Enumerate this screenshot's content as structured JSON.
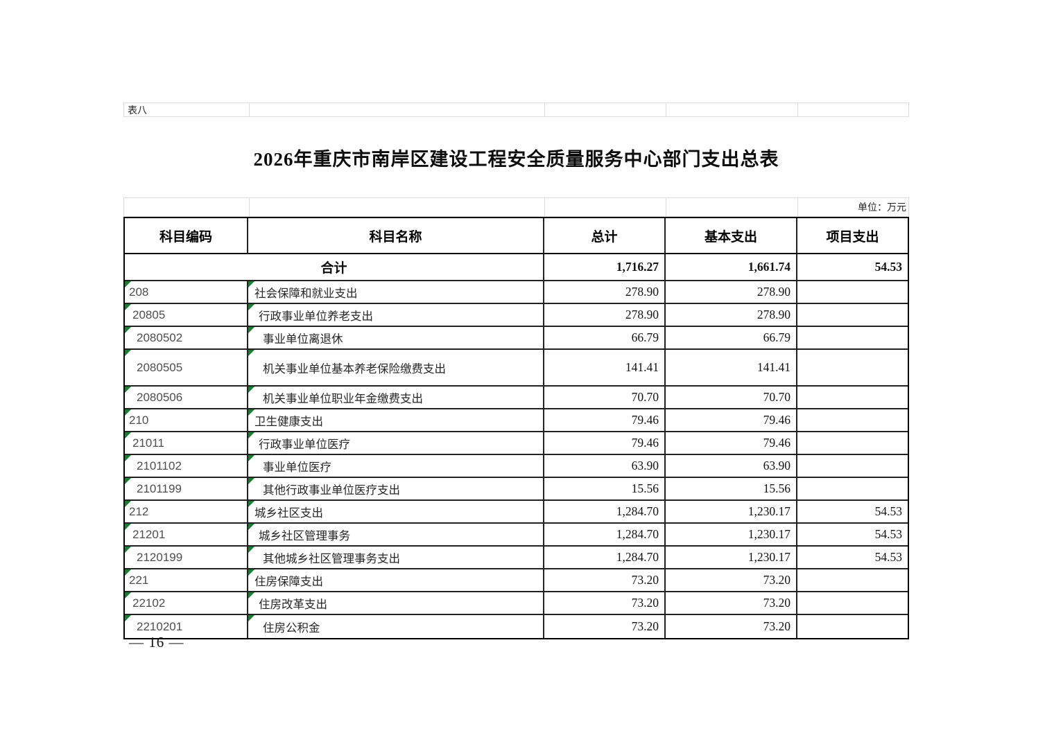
{
  "page": {
    "sheet_label": "表八",
    "title": "2026年重庆市南岸区建设工程安全质量服务中心部门支出总表",
    "unit_label": "单位：万元",
    "page_number": "— 16 —"
  },
  "colors": {
    "marker_green": "#1e7a35",
    "table_border": "#000000",
    "faint_grid": "#dcdcdc"
  },
  "icons": {
    "green_corner_marker": "excel-text-format-triangle"
  },
  "table": {
    "columns": [
      "科目编码",
      "科目名称",
      "总计",
      "基本支出",
      "项目支出"
    ],
    "total_row": {
      "label": "合计",
      "total": "1,716.27",
      "basic": "1,661.74",
      "project": "54.53"
    },
    "rows": [
      {
        "code": "208",
        "name": "社会保障和就业支出",
        "total": "278.90",
        "basic": "278.90",
        "project": "",
        "level": 1,
        "tall": false
      },
      {
        "code": "20805",
        "name": "行政事业单位养老支出",
        "total": "278.90",
        "basic": "278.90",
        "project": "",
        "level": 2,
        "tall": false
      },
      {
        "code": "2080502",
        "name": "事业单位离退休",
        "total": "66.79",
        "basic": "66.79",
        "project": "",
        "level": 3,
        "tall": false
      },
      {
        "code": "2080505",
        "name": "机关事业单位基本养老保险缴费支出",
        "total": "141.41",
        "basic": "141.41",
        "project": "",
        "level": 3,
        "tall": true
      },
      {
        "code": "2080506",
        "name": "机关事业单位职业年金缴费支出",
        "total": "70.70",
        "basic": "70.70",
        "project": "",
        "level": 3,
        "tall": false
      },
      {
        "code": "210",
        "name": "卫生健康支出",
        "total": "79.46",
        "basic": "79.46",
        "project": "",
        "level": 1,
        "tall": false
      },
      {
        "code": "21011",
        "name": "行政事业单位医疗",
        "total": "79.46",
        "basic": "79.46",
        "project": "",
        "level": 2,
        "tall": false
      },
      {
        "code": "2101102",
        "name": "事业单位医疗",
        "total": "63.90",
        "basic": "63.90",
        "project": "",
        "level": 3,
        "tall": false
      },
      {
        "code": "2101199",
        "name": "其他行政事业单位医疗支出",
        "total": "15.56",
        "basic": "15.56",
        "project": "",
        "level": 3,
        "tall": false
      },
      {
        "code": "212",
        "name": "城乡社区支出",
        "total": "1,284.70",
        "basic": "1,230.17",
        "project": "54.53",
        "level": 1,
        "tall": false
      },
      {
        "code": "21201",
        "name": "城乡社区管理事务",
        "total": "1,284.70",
        "basic": "1,230.17",
        "project": "54.53",
        "level": 2,
        "tall": false
      },
      {
        "code": "2120199",
        "name": "其他城乡社区管理事务支出",
        "total": "1,284.70",
        "basic": "1,230.17",
        "project": "54.53",
        "level": 3,
        "tall": false
      },
      {
        "code": "221",
        "name": "住房保障支出",
        "total": "73.20",
        "basic": "73.20",
        "project": "",
        "level": 1,
        "tall": false
      },
      {
        "code": "22102",
        "name": "住房改革支出",
        "total": "73.20",
        "basic": "73.20",
        "project": "",
        "level": 2,
        "tall": false
      },
      {
        "code": "2210201",
        "name": "住房公积金",
        "total": "73.20",
        "basic": "73.20",
        "project": "",
        "level": 3,
        "tall": false
      }
    ]
  }
}
